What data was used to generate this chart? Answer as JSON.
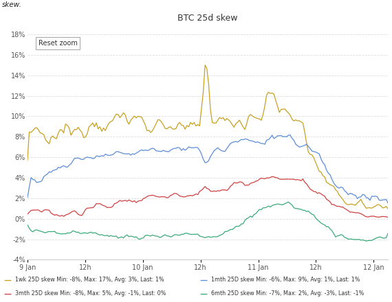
{
  "title": "BTC 25d skew",
  "ylabel": "skew.",
  "ylim": [
    -4,
    19
  ],
  "yticks": [
    -4,
    -2,
    0,
    2,
    4,
    6,
    8,
    10,
    12,
    14,
    16,
    18
  ],
  "background_color": "#ffffff",
  "grid_color": "#dddddd",
  "colors": {
    "1wk": "#c8a020",
    "1mth": "#5b8dd9",
    "3mth": "#d04040",
    "6mth": "#3aaa7a"
  },
  "legend": [
    {
      "label": "1wk 25D skew Min: -8%, Max: 17%, Avg: 3%, Last: 1%",
      "color": "#c8a020",
      "col": 0,
      "row": 0
    },
    {
      "label": "3mth 25D skew Min: -8%, Max: 5%, Avg: -1%, Last: 0%",
      "color": "#d04040",
      "col": 0,
      "row": 1
    },
    {
      "label": "1mth 25D skew Min: -6%, Max: 9%, Avg: 1%, Last: 1%",
      "color": "#5b8dd9",
      "col": 1,
      "row": 0
    },
    {
      "label": "6mth 25D skew Min: -7%, Max: 2%, Avg: -3%, Last: -1%",
      "color": "#3aaa7a",
      "col": 1,
      "row": 1
    }
  ],
  "x_tick_labels": [
    "9 Jan",
    "12h",
    "10 Jan",
    "12h",
    "11 Jan",
    "12h",
    "12 Jan"
  ],
  "x_tick_positions": [
    0,
    12,
    24,
    36,
    48,
    60,
    72
  ]
}
